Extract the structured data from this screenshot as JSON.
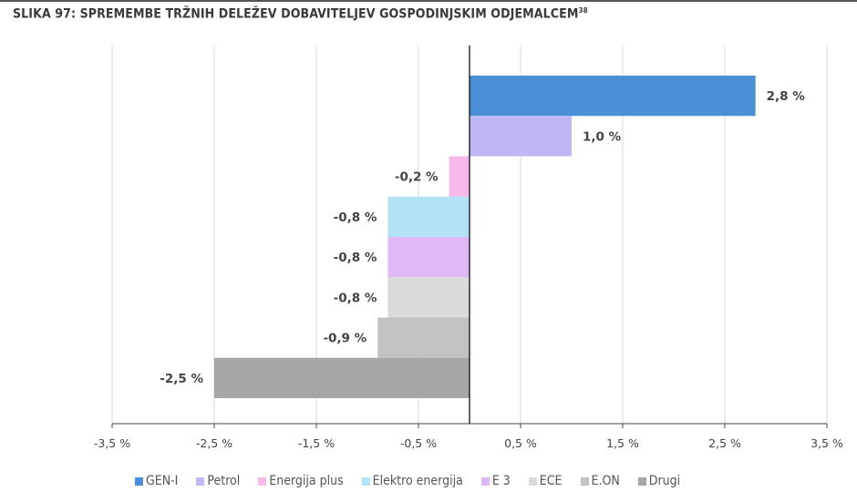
{
  "title": "SLIKA 97: SPREMEMBE TRŽNIH DELEŽEV DOBAVITELJEV GOSPODINJSKIM ODJEMALCEM",
  "title_sup": "38",
  "chart_data": {
    "type": "bar",
    "orientation": "horizontal",
    "categories": [
      "GEN-I",
      "Petrol",
      "Energija plus",
      "Elektro energija",
      "E 3",
      "ECE",
      "E.ON",
      "Drugi"
    ],
    "values": [
      2.8,
      1.0,
      -0.2,
      -0.8,
      -0.8,
      -0.8,
      -0.9,
      -2.5
    ],
    "data_labels": [
      "2,8 %",
      "1,0 %",
      "-0,2 %",
      "-0,8 %",
      "-0,8 %",
      "-0,8 %",
      "-0,9 %",
      "-2,5 %"
    ],
    "colors": [
      "#4a8fd6",
      "#c0b8f6",
      "#f8b8ea",
      "#b2e2f6",
      "#dfb8f6",
      "#dadada",
      "#c2c2c2",
      "#a6a6a6"
    ],
    "xlim": [
      -3.5,
      3.5
    ],
    "x_ticks": [
      -3.5,
      -2.5,
      -1.5,
      -0.5,
      0.5,
      1.5,
      2.5,
      3.5
    ],
    "x_tick_labels": [
      "-3,5 %",
      "-2,5 %",
      "-1,5 %",
      "-0,5 %",
      "0,5 %",
      "1,5 %",
      "2,5 %",
      "3,5 %"
    ],
    "grid": true,
    "legend": "bottom",
    "xlabel": "",
    "ylabel": ""
  }
}
